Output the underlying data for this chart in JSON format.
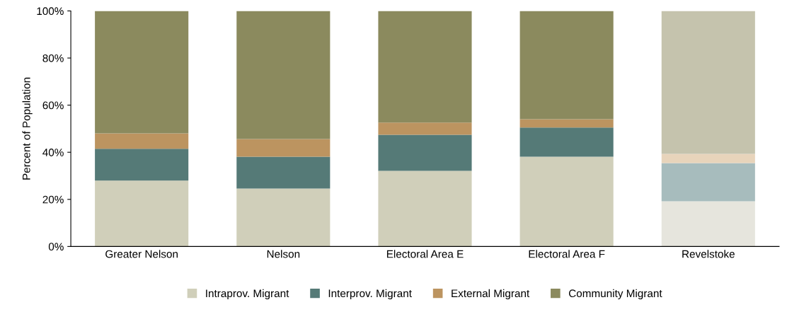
{
  "chart_data": {
    "type": "bar",
    "stacked": true,
    "ylabel": "Percent of Population",
    "categories": [
      "Greater Nelson",
      "Nelson",
      "Electoral Area E",
      "Electoral Area F",
      "Revelstoke"
    ],
    "series": [
      {
        "name": "Intraprov. Migrant",
        "color": "#d0cfba",
        "colors": [
          "#d0cfba",
          "#d0cfba",
          "#d0cfba",
          "#d0cfba",
          "#e6e5dd"
        ],
        "values": [
          28,
          24.6,
          32.1,
          38.1,
          19.2
        ]
      },
      {
        "name": "Interprov. Migrant",
        "color": "#557a77",
        "colors": [
          "#557a77",
          "#557a77",
          "#557a77",
          "#557a77",
          "#a7bcbd"
        ],
        "values": [
          13.5,
          13.5,
          15.3,
          12.4,
          16.2
        ]
      },
      {
        "name": "External Migrant",
        "color": "#bc9460",
        "colors": [
          "#bc9460",
          "#bc9460",
          "#bc9460",
          "#bc9460",
          "#e8d4bb"
        ],
        "values": [
          6.5,
          7.5,
          5.2,
          3.5,
          3.9
        ]
      },
      {
        "name": "Community Migrant",
        "color": "#8b8a5e",
        "colors": [
          "#8b8a5e",
          "#8b8a5e",
          "#8b8a5e",
          "#8b8a5e",
          "#c5c3ad"
        ],
        "values": [
          52,
          54.4,
          47.4,
          46,
          60.7
        ]
      }
    ],
    "ylim": [
      0,
      100
    ],
    "yticks": [
      {
        "value": 0,
        "label": "0%"
      },
      {
        "value": 20,
        "label": "20%"
      },
      {
        "value": 40,
        "label": "40%"
      },
      {
        "value": 60,
        "label": "60%"
      },
      {
        "value": 80,
        "label": "80%"
      },
      {
        "value": 100,
        "label": "100%"
      }
    ],
    "grid": false,
    "legend": "bottom"
  }
}
